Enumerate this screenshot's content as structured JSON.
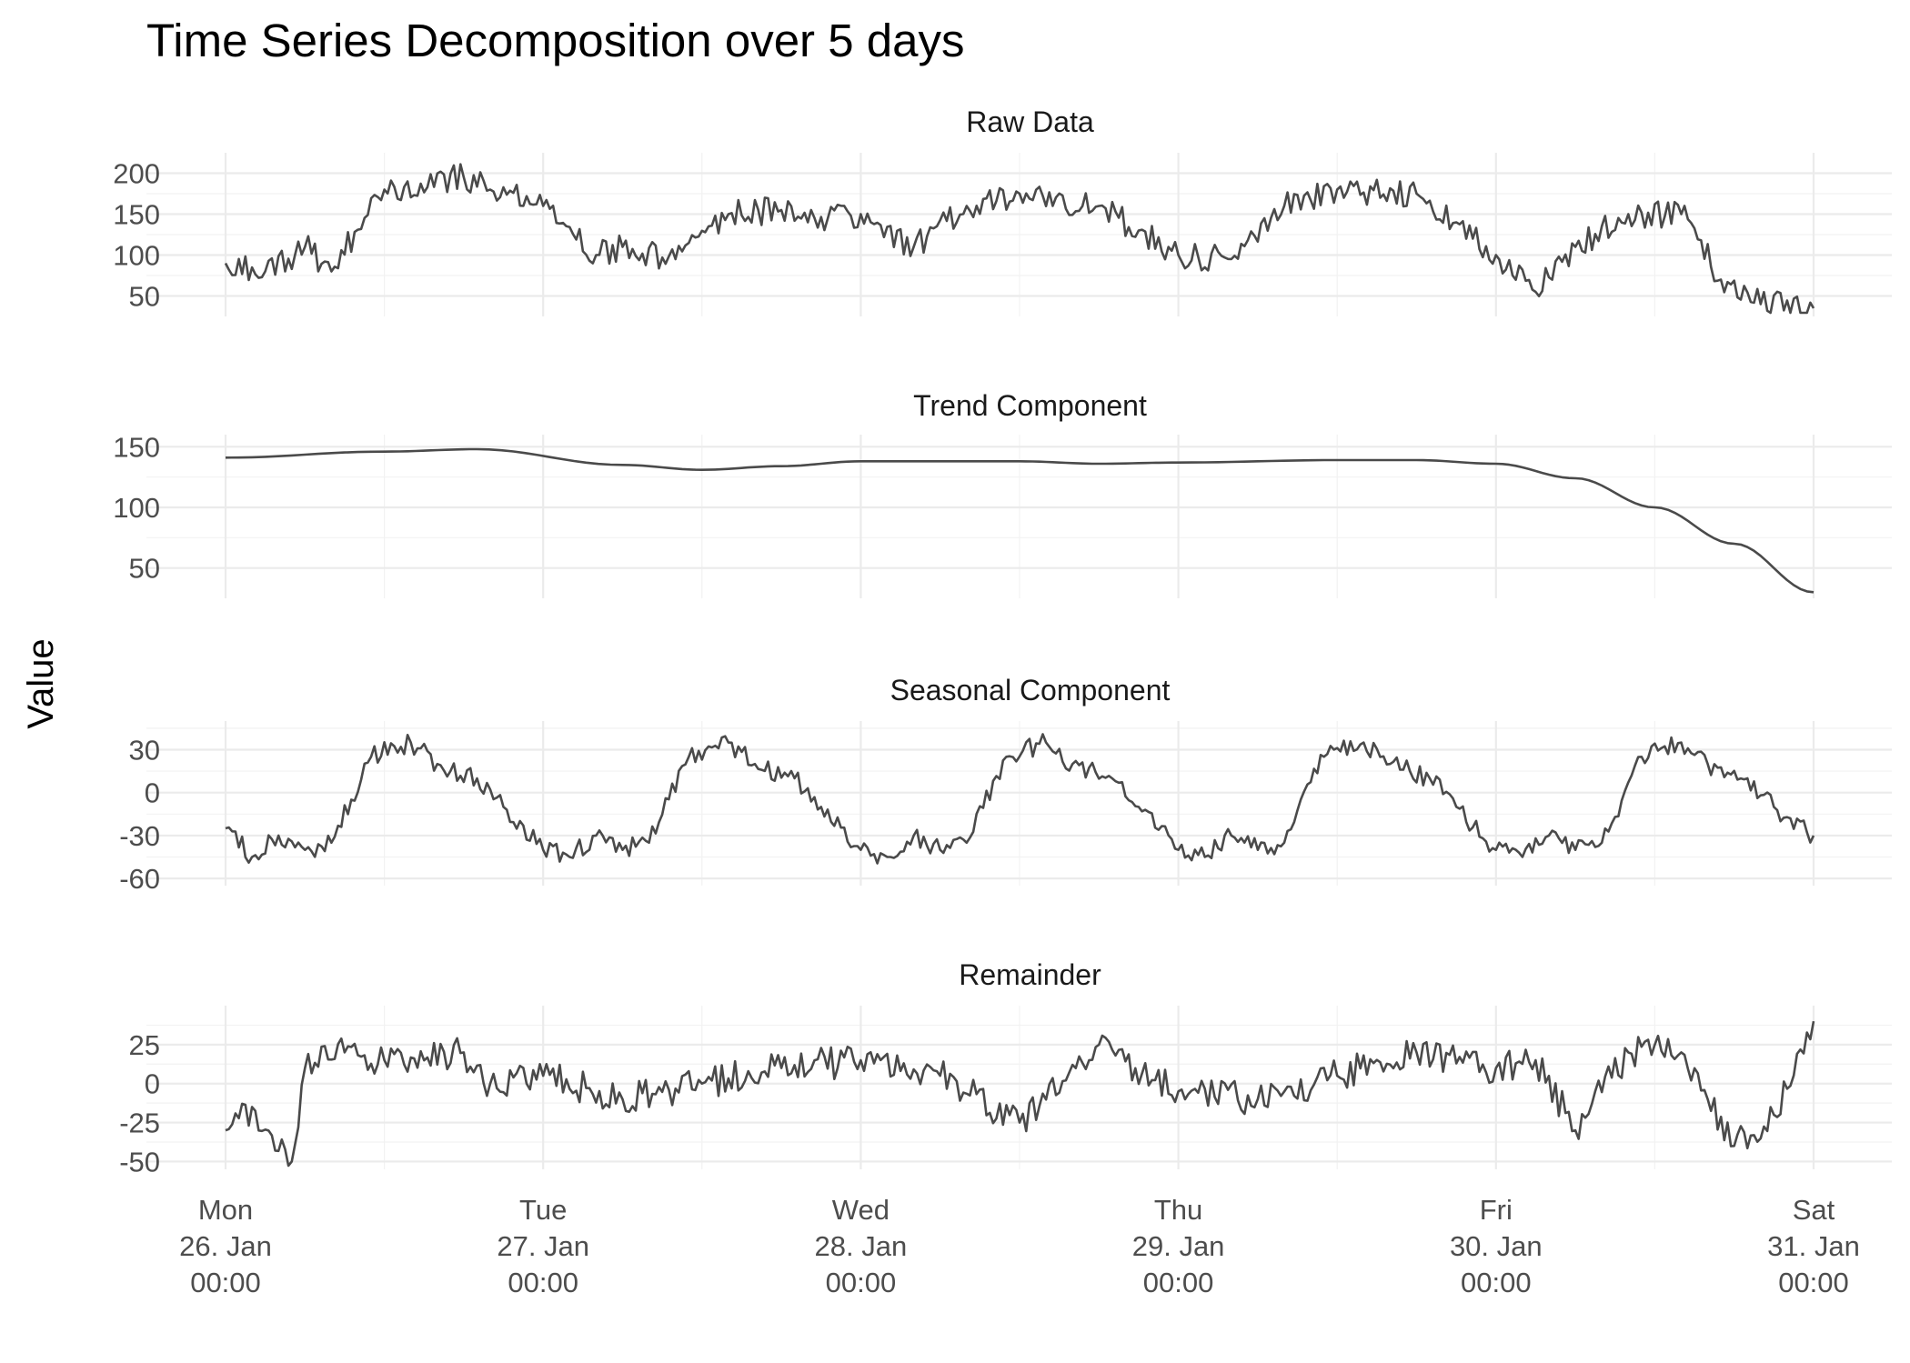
{
  "chart_data": {
    "type": "line",
    "title": "Time Series Decomposition over 5 days",
    "ylabel": "Value",
    "x_start": "2026-01-26T00:00",
    "x_end": "2026-01-31T00:00",
    "x_ticks": [
      {
        "line1": "Mon",
        "line2": "26. Jan",
        "line3": "00:00"
      },
      {
        "line1": "Tue",
        "line2": "27. Jan",
        "line3": "00:00"
      },
      {
        "line1": "Wed",
        "line2": "28. Jan",
        "line3": "00:00"
      },
      {
        "line1": "Thu",
        "line2": "29. Jan",
        "line3": "00:00"
      },
      {
        "line1": "Fri",
        "line2": "30. Jan",
        "line3": "00:00"
      },
      {
        "line1": "Sat",
        "line2": "31. Jan",
        "line3": "00:00"
      }
    ],
    "grid": true,
    "panels": [
      {
        "name": "Raw Data",
        "ylim": [
          25,
          225
        ],
        "yticks": [
          50,
          100,
          150,
          200
        ],
        "ytick_labels": [
          "50",
          "100",
          "150",
          "200"
        ],
        "x": [
          "2026-01-26T00:00",
          "2026-01-26T03:00",
          "2026-01-26T06:00",
          "2026-01-26T08:00",
          "2026-01-26T12:00",
          "2026-01-26T18:00",
          "2026-01-26T20:00",
          "2026-01-27T00:00",
          "2026-01-27T04:00",
          "2026-01-27T06:00",
          "2026-01-27T10:00",
          "2026-01-27T14:00",
          "2026-01-27T18:00",
          "2026-01-27T20:00",
          "2026-01-28T00:00",
          "2026-01-28T04:00",
          "2026-01-28T08:00",
          "2026-01-28T12:00",
          "2026-01-28T18:00",
          "2026-01-28T21:00",
          "2026-01-29T00:00",
          "2026-01-29T04:00",
          "2026-01-29T08:00",
          "2026-01-29T12:00",
          "2026-01-29T18:00",
          "2026-01-29T21:00",
          "2026-01-30T00:00",
          "2026-01-30T03:00",
          "2026-01-30T06:00",
          "2026-01-30T10:00",
          "2026-01-30T14:00",
          "2026-01-30T17:00",
          "2026-01-30T20:00",
          "2026-01-31T00:00"
        ],
        "values": [
          90,
          80,
          110,
          80,
          180,
          195,
          180,
          160,
          100,
          110,
          95,
          150,
          155,
          140,
          150,
          110,
          160,
          175,
          160,
          130,
          100,
          95,
          160,
          180,
          175,
          140,
          100,
          55,
          110,
          150,
          150,
          70,
          40,
          35
        ]
      },
      {
        "name": "Trend Component",
        "ylim": [
          25,
          160
        ],
        "yticks": [
          50,
          100,
          150
        ],
        "ytick_labels": [
          "50",
          "100",
          "150"
        ],
        "x": [
          "2026-01-26T00:00",
          "2026-01-26T12:00",
          "2026-01-26T19:00",
          "2026-01-27T06:00",
          "2026-01-27T12:00",
          "2026-01-27T18:00",
          "2026-01-28T00:00",
          "2026-01-28T12:00",
          "2026-01-28T18:00",
          "2026-01-29T00:00",
          "2026-01-29T12:00",
          "2026-01-29T18:00",
          "2026-01-30T00:00",
          "2026-01-30T06:00",
          "2026-01-30T12:00",
          "2026-01-30T18:00",
          "2026-01-31T00:00"
        ],
        "values": [
          141,
          146,
          148,
          135,
          131,
          134,
          138,
          138,
          136,
          137,
          139,
          139,
          136,
          124,
          100,
          70,
          30
        ]
      },
      {
        "name": "Seasonal Component",
        "ylim": [
          -65,
          50
        ],
        "yticks": [
          -60,
          -30,
          0,
          30
        ],
        "ytick_labels": [
          "-60",
          "-30",
          "0",
          "30"
        ],
        "x": [
          "2026-01-26T00:00",
          "2026-01-26T02:00",
          "2026-01-26T04:00",
          "2026-01-26T06:00",
          "2026-01-26T08:00",
          "2026-01-26T11:00",
          "2026-01-26T14:00",
          "2026-01-26T16:00",
          "2026-01-26T19:00",
          "2026-01-26T21:00",
          "2026-01-27T00:00",
          "2026-01-27T02:00",
          "2026-01-27T04:00",
          "2026-01-27T06:00",
          "2026-01-27T08:00",
          "2026-01-27T11:00",
          "2026-01-27T14:00",
          "2026-01-27T16:00",
          "2026-01-27T19:00",
          "2026-01-27T21:00",
          "2026-01-28T00:00",
          "2026-01-28T02:00",
          "2026-01-28T04:00",
          "2026-01-28T06:00",
          "2026-01-28T08:00",
          "2026-01-28T11:00",
          "2026-01-28T14:00",
          "2026-01-28T16:00",
          "2026-01-28T19:00",
          "2026-01-28T21:00",
          "2026-01-29T00:00",
          "2026-01-29T02:00",
          "2026-01-29T04:00",
          "2026-01-29T06:00",
          "2026-01-29T08:00",
          "2026-01-29T11:00",
          "2026-01-29T14:00",
          "2026-01-29T16:00",
          "2026-01-29T19:00",
          "2026-01-29T21:00",
          "2026-01-30T00:00",
          "2026-01-30T02:00",
          "2026-01-30T04:00",
          "2026-01-30T06:00",
          "2026-01-30T08:00",
          "2026-01-30T11:00",
          "2026-01-30T14:00",
          "2026-01-30T16:00",
          "2026-01-30T19:00",
          "2026-01-30T21:00",
          "2026-01-31T00:00"
        ],
        "values": [
          -25,
          -45,
          -30,
          -40,
          -35,
          25,
          35,
          20,
          10,
          -10,
          -40,
          -45,
          -30,
          -40,
          -35,
          25,
          35,
          20,
          10,
          -10,
          -40,
          -45,
          -30,
          -40,
          -35,
          25,
          35,
          20,
          10,
          -10,
          -40,
          -45,
          -30,
          -40,
          -35,
          25,
          35,
          20,
          10,
          -10,
          -40,
          -45,
          -30,
          -40,
          -35,
          25,
          35,
          20,
          10,
          -10,
          -30
        ]
      },
      {
        "name": "Remainder",
        "ylim": [
          -55,
          50
        ],
        "yticks": [
          -50,
          -25,
          0,
          25
        ],
        "ytick_labels": [
          "-50",
          "-25",
          "0",
          "25"
        ],
        "x": [
          "2026-01-26T00:00",
          "2026-01-26T02:00",
          "2026-01-26T05:00",
          "2026-01-26T06:00",
          "2026-01-26T09:00",
          "2026-01-26T12:00",
          "2026-01-26T18:00",
          "2026-01-26T20:00",
          "2026-01-27T00:00",
          "2026-01-27T06:00",
          "2026-01-27T12:00",
          "2026-01-27T18:00",
          "2026-01-28T00:00",
          "2026-01-28T06:00",
          "2026-01-28T12:00",
          "2026-01-28T18:00",
          "2026-01-29T00:00",
          "2026-01-29T06:00",
          "2026-01-29T12:00",
          "2026-01-29T18:00",
          "2026-01-30T00:00",
          "2026-01-30T03:00",
          "2026-01-30T06:00",
          "2026-01-30T10:00",
          "2026-01-30T12:00",
          "2026-01-30T14:00",
          "2026-01-30T16:00",
          "2026-01-30T18:00",
          "2026-01-30T21:00",
          "2026-01-31T00:00"
        ],
        "values": [
          -30,
          -15,
          -50,
          10,
          20,
          15,
          20,
          0,
          5,
          -10,
          0,
          10,
          15,
          5,
          -25,
          25,
          -5,
          -10,
          5,
          20,
          10,
          15,
          -30,
          20,
          25,
          20,
          -10,
          -40,
          -20,
          40
        ]
      }
    ]
  }
}
